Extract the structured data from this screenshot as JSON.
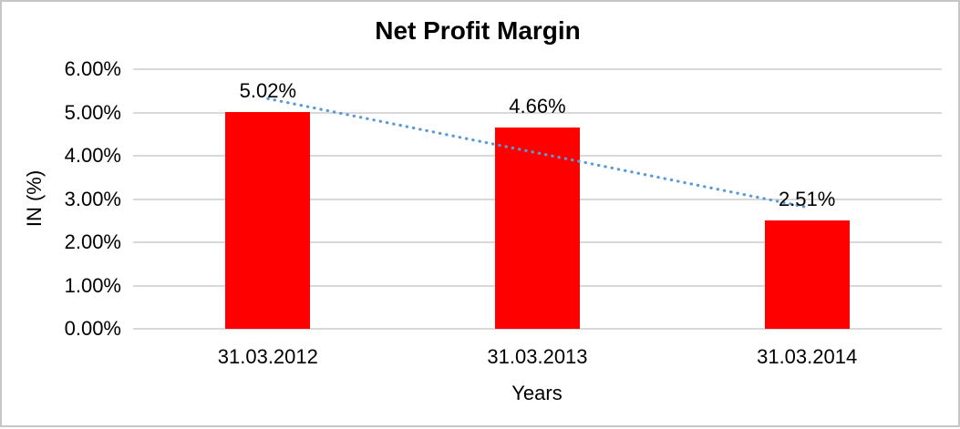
{
  "frame": {
    "background": "#ffffff",
    "border_color": "#c6c6c6"
  },
  "chart_data": {
    "type": "bar",
    "title": "Net Profit Margin",
    "xlabel": "Years",
    "ylabel": "IN (%)",
    "categories": [
      "31.03.2012",
      "31.03.2013",
      "31.03.2014"
    ],
    "values": [
      5.02,
      4.66,
      2.51
    ],
    "data_labels": [
      "5.02%",
      "4.66%",
      "2.51%"
    ],
    "ylim": [
      0,
      6
    ],
    "y_tick_step": 1,
    "y_tick_labels": [
      "0.00%",
      "1.00%",
      "2.00%",
      "3.00%",
      "4.00%",
      "5.00%",
      "6.00%"
    ],
    "grid": true,
    "legend": "none",
    "bar_color": "#ff0000",
    "gridline_color": "#d9d9d9",
    "text_color": "#000000",
    "trendline": {
      "type": "linear",
      "style": "dotted",
      "color": "#5b9bd5",
      "start_value": 5.32,
      "end_value": 2.81
    }
  }
}
